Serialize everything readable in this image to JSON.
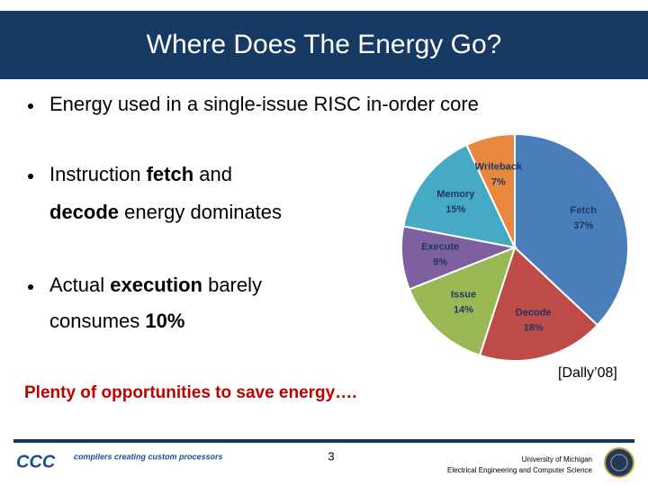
{
  "title": "Where Does The Energy Go?",
  "bullets": [
    {
      "lines": [
        [
          {
            "text": "Energy used in a single-issue RISC in-order core"
          }
        ]
      ]
    },
    {
      "lines": [
        [
          {
            "text": "Instruction "
          },
          {
            "text": "fetch",
            "bold": true
          },
          {
            "text": " and"
          }
        ],
        [
          {
            "text": "decode",
            "bold": true
          },
          {
            "text": " energy dominates"
          }
        ]
      ]
    },
    {
      "lines": [
        [
          {
            "text": "Actual "
          },
          {
            "text": "execution",
            "bold": true
          },
          {
            "text": " barely"
          }
        ],
        [
          {
            "text": "consumes "
          },
          {
            "text": "10%",
            "bold": true
          }
        ]
      ]
    }
  ],
  "callout": "Plenty of opportunities to save energy….",
  "citation": "[Dally’08]",
  "chart_data": {
    "type": "pie",
    "categories": [
      "Fetch",
      "Decode",
      "Issue",
      "Execute",
      "Memory",
      "Writeback"
    ],
    "values": [
      37,
      18,
      14,
      9,
      15,
      7
    ],
    "value_labels": [
      "37%",
      "18%",
      "14%",
      "9%",
      "15%",
      "7%"
    ],
    "colors": [
      "#4a7ebb",
      "#be4b48",
      "#98b954",
      "#7d60a0",
      "#46aac5",
      "#e8893f"
    ]
  },
  "footer": {
    "logo": "CCC",
    "tagline": "compilers creating custom processors",
    "page_number": 3,
    "affiliation": [
      "University of Michigan",
      "Electrical Engineering and Computer Science"
    ]
  }
}
